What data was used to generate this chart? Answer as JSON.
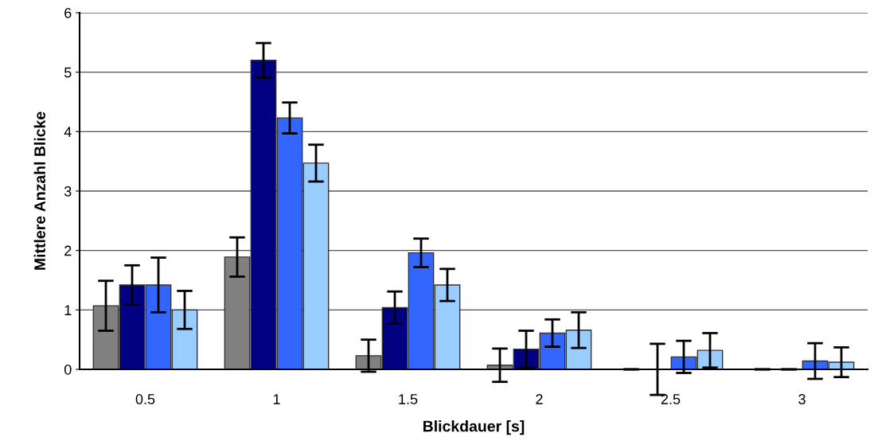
{
  "chart_data": {
    "type": "bar",
    "xlabel": "Blickdauer [s]",
    "ylabel": "Mittlere Anzahl Blicke",
    "categories": [
      "0.5",
      "1",
      "1.5",
      "2",
      "2.5",
      "3"
    ],
    "series": [
      {
        "color": "#808080",
        "values": [
          1.07,
          1.89,
          0.23,
          0.07,
          0,
          0
        ],
        "errors": [
          0.42,
          0.33,
          0.27,
          0.28,
          0,
          0
        ]
      },
      {
        "color": "#000080",
        "values": [
          1.42,
          5.2,
          1.04,
          0.34,
          0,
          0
        ],
        "errors": [
          0.33,
          0.29,
          0.27,
          0.31,
          0.43,
          0
        ]
      },
      {
        "color": "#3366ff",
        "values": [
          1.42,
          4.23,
          1.96,
          0.61,
          0.21,
          0.14
        ],
        "errors": [
          0.46,
          0.26,
          0.24,
          0.23,
          0.27,
          0.3
        ]
      },
      {
        "color": "#99ccff",
        "values": [
          1.0,
          3.47,
          1.42,
          0.66,
          0.32,
          0.12
        ],
        "errors": [
          0.32,
          0.31,
          0.27,
          0.3,
          0.29,
          0.25
        ]
      }
    ],
    "ylim": [
      0,
      6
    ],
    "yticks": [
      0,
      1,
      2,
      3,
      4,
      5,
      6
    ],
    "grid": "y",
    "legend": false
  }
}
